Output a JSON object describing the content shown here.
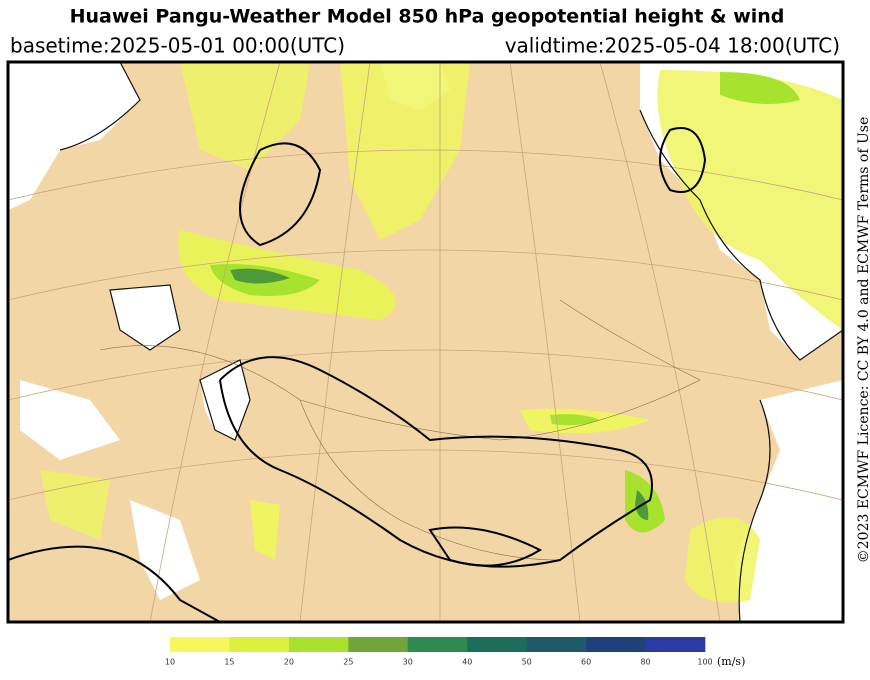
{
  "header": {
    "title": "Huawei Pangu-Weather Model 850 hPa geopotential height & wind",
    "basetime": "basetime:2025-05-01 00:00(UTC)",
    "validtime": "validtime:2025-05-04 18:00(UTC)"
  },
  "licence": "©2023 ECMWF Licence: CC BY 4.0 and ECMWF Terms of Use",
  "colorbar": {
    "ticks": [
      10,
      15,
      20,
      25,
      30,
      40,
      50,
      60,
      80,
      100
    ],
    "colors": [
      "#f5f75c",
      "#dcf03e",
      "#a8e22c",
      "#6fa53a",
      "#2f8a52",
      "#1c6d5a",
      "#1d5a6a",
      "#1e417c",
      "#2b3aa2"
    ],
    "unit": "(m/s)"
  }
}
